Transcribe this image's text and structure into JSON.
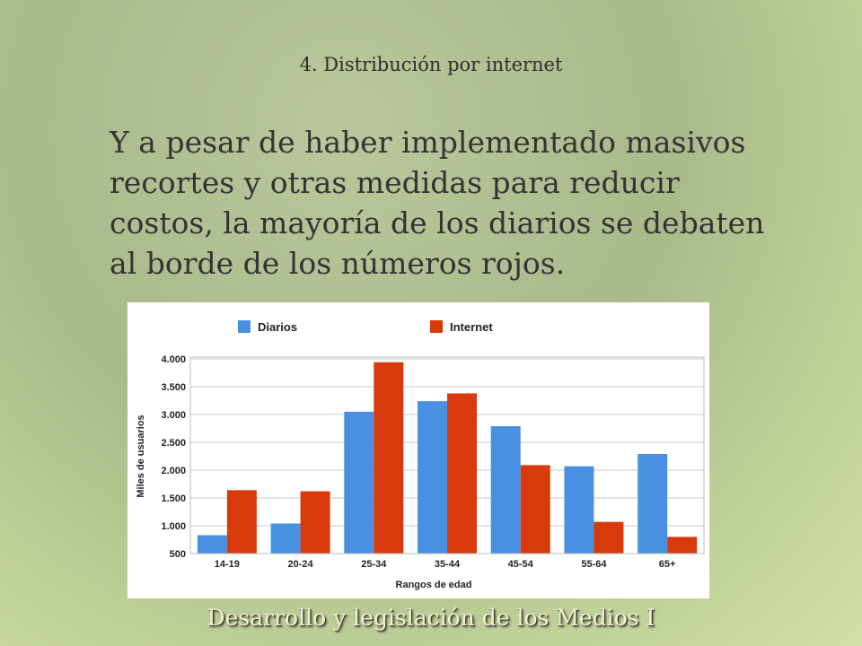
{
  "slide": {
    "title": "4. Distribución por internet",
    "body": "Y a pesar de haber implementado masivos recortes y otras medidas para reducir costos, la mayoría de los diarios se debaten al borde de los números rojos.",
    "footer": "Desarrollo y legislación de los Medios I"
  },
  "colors": {
    "diarios": "#4a90e2",
    "internet": "#d93a0b",
    "grid": "#c8c8c8",
    "axis_text": "#222222"
  },
  "chart_data": {
    "type": "bar",
    "categories": [
      "14-19",
      "20-24",
      "25-34",
      "35-44",
      "45-54",
      "55-64",
      "65+"
    ],
    "series": [
      {
        "name": "Diarios",
        "values": [
          830,
          1040,
          3050,
          3240,
          2790,
          2070,
          2290
        ]
      },
      {
        "name": "Internet",
        "values": [
          1640,
          1620,
          3940,
          3380,
          2090,
          1070,
          800
        ]
      }
    ],
    "title": "",
    "xlabel": "Rangos de edad",
    "ylabel": "Miles de usuarios",
    "ylim": [
      500,
      4000
    ],
    "yticks": [
      500,
      1000,
      1500,
      2000,
      2500,
      3000,
      3500,
      4000
    ],
    "ytick_labels": [
      "500",
      "1.000",
      "1.500",
      "2.000",
      "2.500",
      "3.000",
      "3.500",
      "4.000"
    ],
    "grid": true,
    "legend": "top-left"
  }
}
